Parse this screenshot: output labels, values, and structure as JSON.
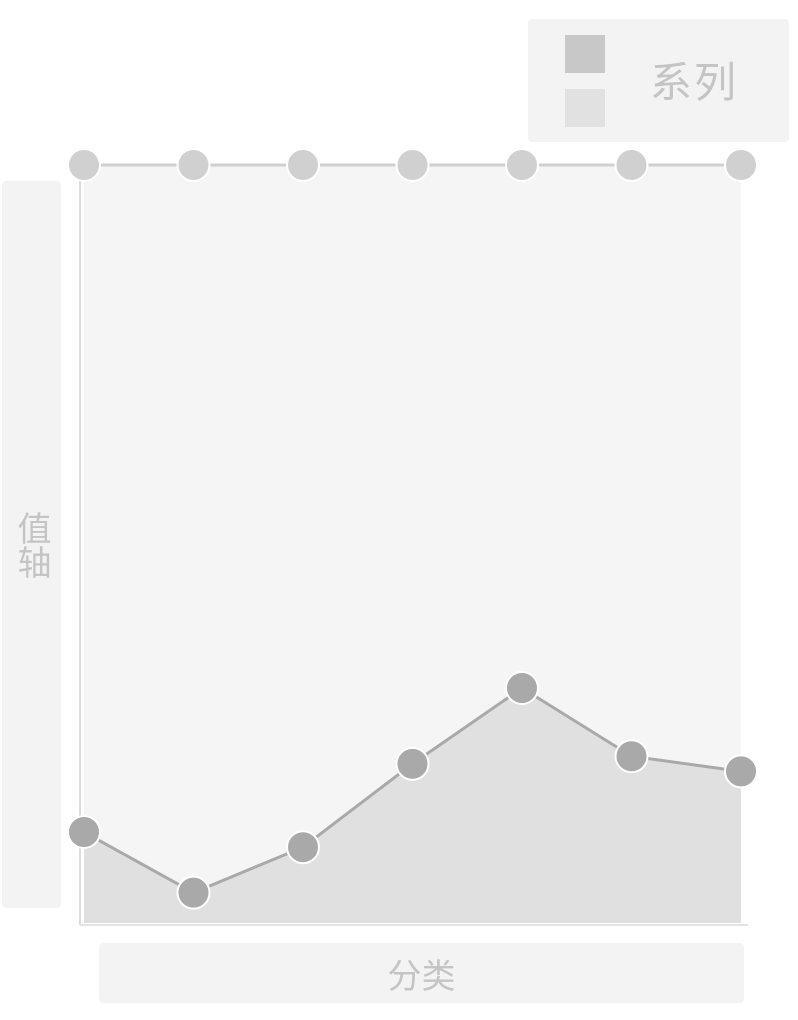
{
  "chart_data": {
    "type": "area",
    "title": "",
    "xlabel": "分类",
    "ylabel": "值轴",
    "legend": {
      "position": "top-right",
      "label": "系列"
    },
    "grid": false,
    "categories": [
      "",
      "",
      "",
      "",
      "",
      "",
      ""
    ],
    "ylim": [
      0,
      100
    ],
    "series": [
      {
        "values": [
          100,
          100,
          100,
          100,
          100,
          100,
          100
        ],
        "color": "#d0d0d0",
        "fill": "#f5f5f5"
      },
      {
        "values": [
          12,
          4,
          10,
          21,
          31,
          22,
          20
        ],
        "color": "#a9a9a9",
        "fill": "#e0e0e0"
      }
    ]
  }
}
